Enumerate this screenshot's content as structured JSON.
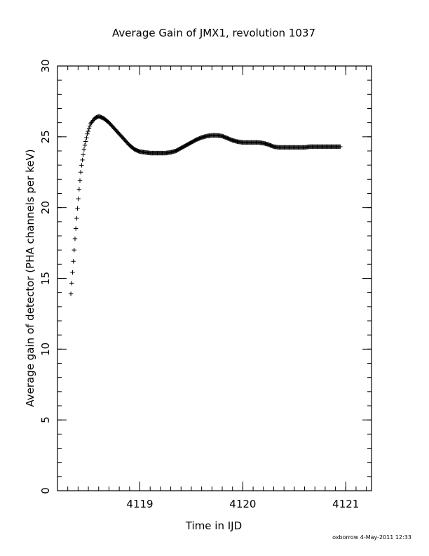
{
  "footer": "oxborrow  4-May-2011 12:33",
  "chart_data": {
    "type": "scatter",
    "marker": "plus",
    "title": "Average Gain of JMX1, revolution 1037",
    "xlabel": "Time in IJD",
    "ylabel": "Average gain of detector (PHA channels per keV)",
    "xlim": [
      4118.2,
      4121.25
    ],
    "ylim": [
      0,
      30
    ],
    "xticks": [
      4119,
      4120,
      4121
    ],
    "xtick_labels": [
      "4119",
      "4120",
      "4121"
    ],
    "yticks": [
      0,
      5,
      10,
      15,
      20,
      25,
      30
    ],
    "ytick_labels": [
      "0",
      "5",
      "10",
      "15",
      "20",
      "25",
      "30"
    ],
    "x_minor_step": 0.1,
    "y_minor_step": 1,
    "grid": false,
    "series": [
      {
        "x": [
          4118.33,
          4118.35,
          4118.37,
          4118.39,
          4118.41,
          4118.43,
          4118.46,
          4118.49,
          4118.52,
          4118.56,
          4118.6,
          4118.65,
          4118.7,
          4118.75,
          4118.8,
          4118.85,
          4118.9,
          4118.95,
          4119.0,
          4119.05,
          4119.1,
          4119.15,
          4119.2,
          4119.25,
          4119.3,
          4119.35,
          4119.4,
          4119.45,
          4119.5,
          4119.55,
          4119.6,
          4119.65,
          4119.7,
          4119.75,
          4119.8,
          4119.85,
          4119.9,
          4119.95,
          4120.0,
          4120.05,
          4120.1,
          4120.15,
          4120.2,
          4120.25,
          4120.3,
          4120.35,
          4120.4,
          4120.45,
          4120.5,
          4120.55,
          4120.6,
          4120.65,
          4120.7,
          4120.75,
          4120.8,
          4120.85,
          4120.9,
          4120.95
        ],
        "y": [
          13.9,
          15.8,
          17.8,
          19.6,
          21.3,
          22.8,
          24.2,
          25.2,
          25.9,
          26.3,
          26.45,
          26.3,
          26.0,
          25.6,
          25.2,
          24.8,
          24.4,
          24.1,
          23.95,
          23.9,
          23.85,
          23.85,
          23.85,
          23.85,
          23.9,
          24.0,
          24.2,
          24.4,
          24.6,
          24.8,
          24.95,
          25.05,
          25.1,
          25.1,
          25.05,
          24.9,
          24.75,
          24.65,
          24.6,
          24.6,
          24.6,
          24.6,
          24.55,
          24.45,
          24.3,
          24.25,
          24.25,
          24.25,
          24.25,
          24.25,
          24.25,
          24.3,
          24.3,
          24.3,
          24.3,
          24.3,
          24.3,
          24.3
        ]
      }
    ]
  }
}
